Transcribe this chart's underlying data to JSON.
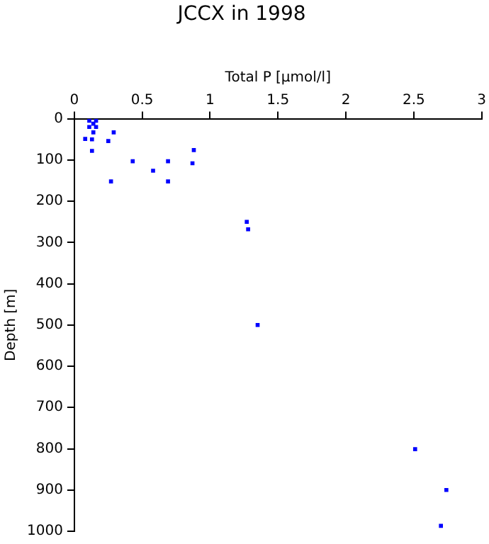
{
  "chart_data": {
    "type": "scatter",
    "title": "JCCX in 1998",
    "xlabel": "Total P [µmol/l]",
    "ylabel": "Depth [m]",
    "series": [
      {
        "color": "#0000ff",
        "x": [
          0.11,
          0.16,
          0.11,
          0.16,
          0.14,
          0.14,
          0.08,
          0.13,
          0.13,
          0.25,
          0.29,
          0.27,
          0.43,
          0.58,
          0.69,
          0.69,
          0.88,
          0.87,
          1.27,
          1.28,
          1.35,
          2.51,
          2.74,
          2.7
        ],
        "values": [
          5,
          5,
          20,
          20,
          12,
          33,
          49,
          50,
          78,
          54,
          33,
          152,
          103,
          126,
          103,
          152,
          76,
          108,
          250,
          268,
          500,
          801,
          900,
          987
        ]
      }
    ],
    "xlim": [
      0,
      3
    ],
    "xticks": [
      0,
      0.5,
      1,
      1.5,
      2,
      2.5,
      3
    ],
    "ylim": [
      1000,
      0
    ],
    "yticks": [
      0,
      100,
      200,
      300,
      400,
      500,
      600,
      700,
      800,
      900,
      1000
    ],
    "grid": false,
    "legend": false,
    "marker": "square"
  }
}
